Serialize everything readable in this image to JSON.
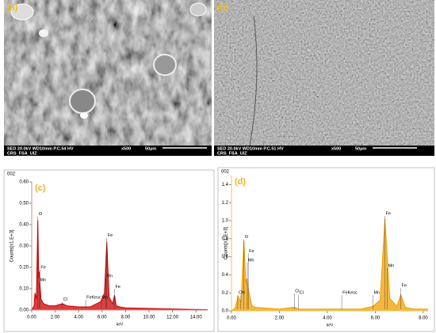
{
  "panels": [
    {
      "label": "(a)",
      "info": "SED 20.0kV WD10mm P.C.54 HV",
      "mag": "x500",
      "scale": "50µm",
      "operator": "CRS_FSA_UIZ"
    },
    {
      "label": "(b)",
      "info": "SED 20.0kV WD10mm P.C.51 HV",
      "mag": "x500",
      "scale": "50µm",
      "operator": "CRS_FSA_UIZ"
    }
  ],
  "chart_data": [
    {
      "type": "line",
      "header": "002",
      "panel_label": "(c)",
      "x_label": "keV",
      "y_label": "Counts[x1.E+3]",
      "color": "#cc0000",
      "x": [
        0,
        0.2,
        0.28,
        0.4,
        0.52,
        0.6,
        0.64,
        0.7,
        0.8,
        1.0,
        1.5,
        2.0,
        2.6,
        3.0,
        4.0,
        5.0,
        5.9,
        6.2,
        6.4,
        6.6,
        6.9,
        7.06,
        7.2,
        7.5,
        8,
        10,
        12,
        14,
        15
      ],
      "values": [
        0,
        0.02,
        0.08,
        0.05,
        0.42,
        0.15,
        0.18,
        0.12,
        0.05,
        0.03,
        0.02,
        0.02,
        0.03,
        0.02,
        0.015,
        0.015,
        0.04,
        0.08,
        0.32,
        0.06,
        0.03,
        0.07,
        0.02,
        0.015,
        0.01,
        0.008,
        0.005,
        0.003,
        0.002
      ],
      "xlim": [
        0,
        15
      ],
      "xticks": [
        {
          "value": 0,
          "label": "0.00"
        },
        {
          "value": 2,
          "label": "2.00"
        },
        {
          "value": 4,
          "label": "4.00"
        },
        {
          "value": 6,
          "label": "6.00"
        },
        {
          "value": 8,
          "label": "8.00"
        },
        {
          "value": 10,
          "label": "10.00"
        },
        {
          "value": 12,
          "label": "12.00"
        },
        {
          "value": 14,
          "label": "14.00"
        }
      ],
      "ylim": [
        0,
        0.6
      ],
      "yticks": [
        {
          "value": 0,
          "label": "0.00"
        },
        {
          "value": 0.1,
          "label": "0.10"
        },
        {
          "value": 0.2,
          "label": "0.20"
        },
        {
          "value": 0.3,
          "label": "0.30"
        },
        {
          "value": 0.4,
          "label": "0.40"
        },
        {
          "value": 0.5,
          "label": "0.50"
        },
        {
          "value": 0.6,
          "label": "0.60"
        }
      ],
      "annotations": [
        {
          "label": "O",
          "x": 0.52,
          "y": 0.45
        },
        {
          "label": "Fe",
          "x": 0.7,
          "y": 0.2
        },
        {
          "label": "Mn",
          "x": 0.64,
          "y": 0.14
        },
        {
          "label": "Cl",
          "x": 2.62,
          "y": 0.05
        },
        {
          "label": "FeKesc",
          "x": 4.6,
          "y": 0.06
        },
        {
          "label": "Mn",
          "x": 5.9,
          "y": 0.06
        },
        {
          "label": "Fe",
          "x": 6.4,
          "y": 0.35
        },
        {
          "label": "Mn",
          "x": 6.3,
          "y": 0.16
        },
        {
          "label": "Fe",
          "x": 7.06,
          "y": 0.11
        }
      ]
    },
    {
      "type": "line",
      "header": "002",
      "panel_label": "(d)",
      "x_label": "keV",
      "y_label": "Counts[x1.E+3]",
      "color": "#f0a000",
      "x": [
        0,
        0.15,
        0.28,
        0.4,
        0.52,
        0.6,
        0.64,
        0.72,
        0.85,
        1.0,
        1.5,
        2.0,
        2.62,
        2.8,
        3.5,
        4.6,
        5.4,
        5.9,
        6.2,
        6.4,
        6.6,
        6.9,
        7.06,
        7.25,
        7.6,
        8.0,
        8.2
      ],
      "values": [
        0,
        0.03,
        0.16,
        0.09,
        0.78,
        0.3,
        0.36,
        0.22,
        0.06,
        0.04,
        0.03,
        0.02,
        0.04,
        0.02,
        0.02,
        0.02,
        0.02,
        0.05,
        0.12,
        1.02,
        0.14,
        0.05,
        0.18,
        0.04,
        0.02,
        0.02,
        0.02
      ],
      "xlim": [
        0,
        8.2
      ],
      "xticks": [
        {
          "value": 0,
          "label": "0.00"
        },
        {
          "value": 2,
          "label": "2.00"
        },
        {
          "value": 4,
          "label": "4.00"
        },
        {
          "value": 6,
          "label": "6.00"
        },
        {
          "value": 8,
          "label": "8.00"
        }
      ],
      "ylim": [
        0,
        1.5
      ],
      "yticks": [
        {
          "value": 0,
          "label": "0.0"
        },
        {
          "value": 0.2,
          "label": "0.2"
        },
        {
          "value": 0.4,
          "label": "0.4"
        },
        {
          "value": 0.6,
          "label": "0.6"
        },
        {
          "value": 0.8,
          "label": "0.8"
        },
        {
          "value": 1.0,
          "label": "1.0"
        },
        {
          "value": 1.2,
          "label": "1.2"
        },
        {
          "value": 1.4,
          "label": "1.4"
        }
      ],
      "annotations": [
        {
          "label": "O",
          "x": 0.52,
          "y": 0.82
        },
        {
          "label": "Fe",
          "x": 0.7,
          "y": 0.66
        },
        {
          "label": "Mn",
          "x": 0.66,
          "y": 0.56
        },
        {
          "label": "C",
          "x": 0.26,
          "y": 0.2
        },
        {
          "label": "N",
          "x": 0.39,
          "y": 0.2
        },
        {
          "label": "Cl",
          "x": 2.62,
          "y": 0.22
        },
        {
          "label": "Cl",
          "x": 2.8,
          "y": 0.2
        },
        {
          "label": "FeKesc",
          "x": 4.6,
          "y": 0.2
        },
        {
          "label": "Mn",
          "x": 5.9,
          "y": 0.2
        },
        {
          "label": "Fe",
          "x": 6.4,
          "y": 1.08
        },
        {
          "label": "Mn",
          "x": 6.5,
          "y": 0.5
        },
        {
          "label": "Fe",
          "x": 7.06,
          "y": 0.28
        }
      ]
    }
  ]
}
